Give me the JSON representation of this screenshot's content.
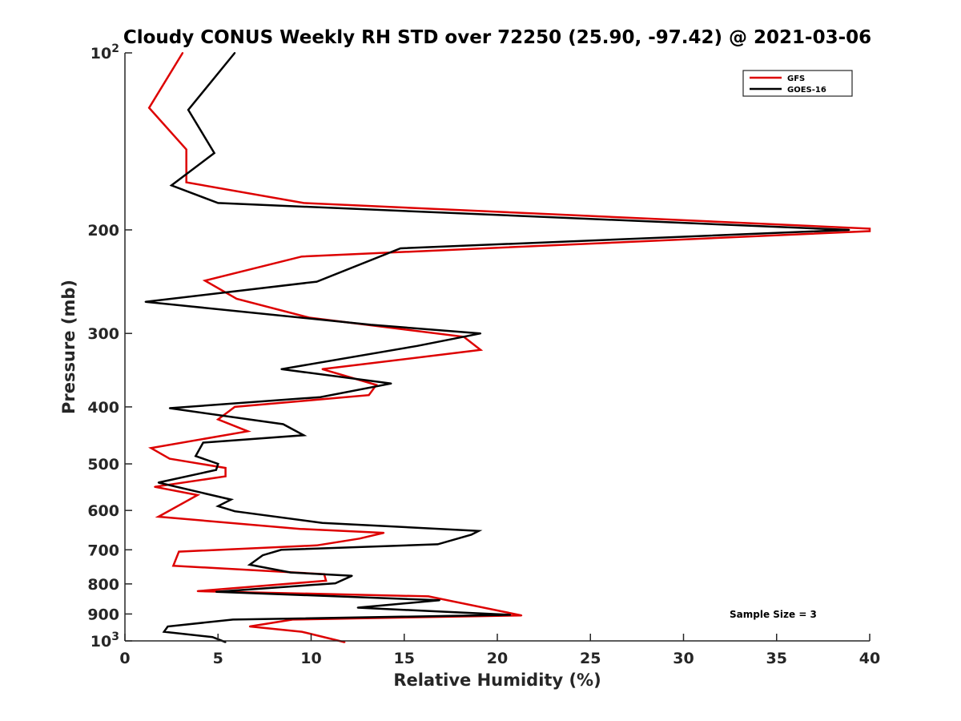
{
  "chart_data": {
    "type": "line",
    "title": "Cloudy CONUS Weekly RH STD over 72250 (25.90, -97.42) @ 2021-03-06",
    "xlabel": "Relative Humidity (%)",
    "ylabel": "Pressure (mb)",
    "xlim": [
      0,
      40
    ],
    "ylim": [
      100,
      1000
    ],
    "yscale": "log",
    "y_reversed": true,
    "grid": false,
    "legend_position": "top-right",
    "x_ticks": [
      0,
      5,
      10,
      15,
      20,
      25,
      30,
      35,
      40
    ],
    "x_tick_labels": [
      "0",
      "5",
      "10",
      "15",
      "20",
      "25",
      "30",
      "35",
      "40"
    ],
    "y_ticks": [
      100,
      200,
      300,
      400,
      500,
      600,
      700,
      800,
      900,
      1000
    ],
    "y_tick_labels": [
      {
        "base": "10",
        "exp": "2"
      },
      {
        "base": "200",
        "exp": ""
      },
      {
        "base": "300",
        "exp": ""
      },
      {
        "base": "400",
        "exp": ""
      },
      {
        "base": "500",
        "exp": ""
      },
      {
        "base": "600",
        "exp": ""
      },
      {
        "base": "700",
        "exp": ""
      },
      {
        "base": "800",
        "exp": ""
      },
      {
        "base": "900",
        "exp": ""
      },
      {
        "base": "10",
        "exp": "3"
      }
    ],
    "series": [
      {
        "name": "GFS",
        "color": "#dd0000",
        "x": [
          3.1,
          1.3,
          3.3,
          3.3,
          9.6,
          40.0,
          40.0,
          9.5,
          4.3,
          6.0,
          9.9,
          18.2,
          19.1,
          10.6,
          13.5,
          13.1,
          5.9,
          5.0,
          6.6,
          1.4,
          2.4,
          5.4,
          5.4,
          1.6,
          3.9,
          1.8,
          9.4,
          13.9,
          12.6,
          10.3,
          2.9,
          2.6,
          10.7,
          10.8,
          3.9,
          16.3,
          21.3,
          9.0,
          6.7,
          9.5,
          11.8
        ],
        "y": [
          100,
          124,
          146,
          166,
          180,
          199,
          201,
          222,
          244,
          262,
          282,
          304,
          320,
          345,
          367,
          382,
          400,
          420,
          440,
          470,
          490,
          508,
          525,
          547,
          565,
          615,
          645,
          655,
          670,
          688,
          705,
          745,
          770,
          790,
          823,
          840,
          905,
          920,
          945,
          965,
          1005
        ]
      },
      {
        "name": "GOES-16",
        "color": "#000000",
        "x": [
          5.9,
          3.4,
          4.8,
          2.5,
          5.0,
          38.9,
          14.8,
          10.3,
          1.1,
          13.2,
          19.1,
          15.7,
          8.4,
          14.3,
          10.5,
          2.4,
          8.5,
          9.6,
          4.2,
          3.8,
          5.0,
          4.9,
          1.8,
          5.7,
          5.0,
          5.9,
          10.6,
          19.0,
          18.6,
          16.8,
          8.4,
          7.4,
          6.7,
          8.9,
          12.2,
          11.3,
          4.9,
          16.9,
          12.5,
          20.7,
          5.8,
          2.3,
          2.1,
          4.7,
          5.4
        ],
        "y": [
          100,
          125,
          148,
          168,
          180,
          200,
          215,
          245,
          265,
          290,
          300,
          315,
          345,
          365,
          385,
          402,
          428,
          447,
          460,
          485,
          500,
          512,
          538,
          575,
          590,
          602,
          630,
          650,
          660,
          685,
          700,
          715,
          742,
          765,
          775,
          798,
          825,
          853,
          878,
          903,
          920,
          945,
          965,
          985,
          1005
        ]
      }
    ],
    "annotations": [
      "Sample Size = 3"
    ]
  }
}
